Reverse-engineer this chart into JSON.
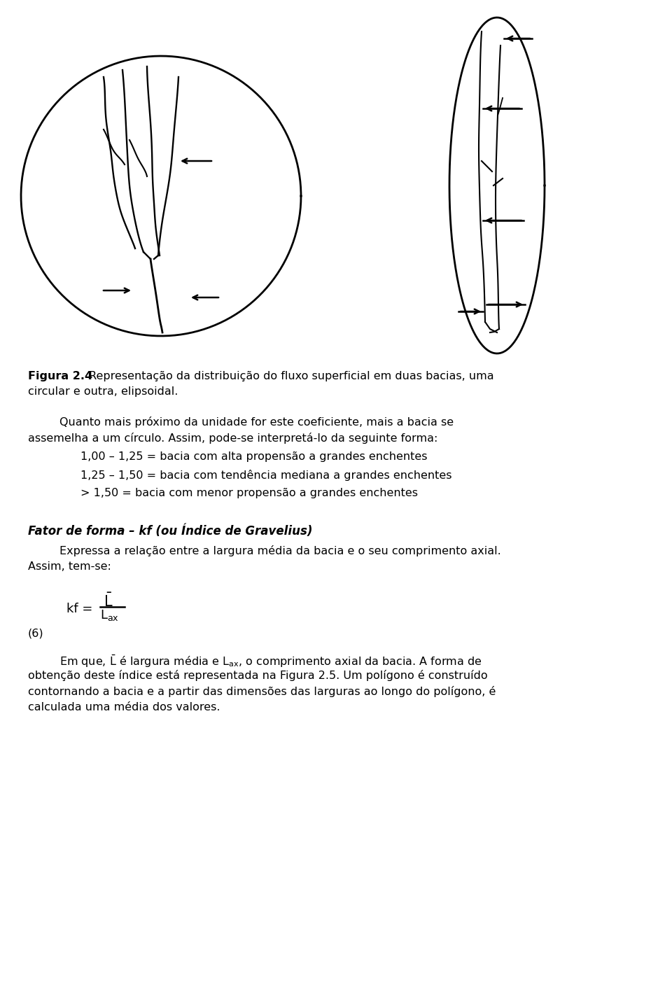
{
  "bg_color": "#ffffff",
  "fig_width": 9.6,
  "fig_height": 14.03,
  "caption_bold": "Figura 2.4",
  "caption_normal": " Representação da distribuição do fluxo superficial em duas bacias, uma circular e outra, elipsoidal.",
  "bullet1": "1,00 – 1,25 = bacia com alta propensão a grandes enchentes",
  "bullet2": "1,25 – 1,50 = bacia com tendência mediana a grandes enchentes",
  "bullet3": "> 1,50 = bacia com menor propensão a grandes enchentes",
  "section_bold": "Fator de forma – kf (ou Índice de Gravelius)"
}
